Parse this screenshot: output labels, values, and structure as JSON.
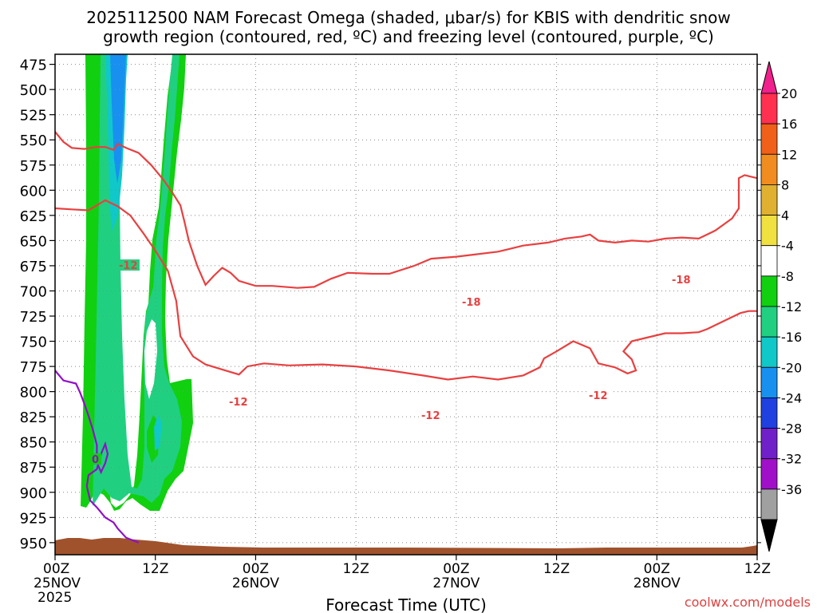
{
  "chart_data": {
    "type": "heatmap",
    "title_line1": "2025112500 NAM Forecast Omega (shaded, μbar/s) for KBIS with dendritic snow",
    "title_line2": "growth region (contoured, red, ºC) and freezing level (contoured, purple, ºC)",
    "xlabel": "Forecast Time (UTC)",
    "watermark": "coolwx.com/models",
    "x_range_hours": [
      0,
      84
    ],
    "x_ticks": [
      {
        "hour": 0,
        "label": "00Z",
        "sub": "25NOV",
        "sub2": "2025"
      },
      {
        "hour": 12,
        "label": "12Z",
        "sub": "",
        "sub2": ""
      },
      {
        "hour": 24,
        "label": "00Z",
        "sub": "26NOV",
        "sub2": ""
      },
      {
        "hour": 36,
        "label": "12Z",
        "sub": "",
        "sub2": ""
      },
      {
        "hour": 48,
        "label": "00Z",
        "sub": "27NOV",
        "sub2": ""
      },
      {
        "hour": 60,
        "label": "12Z",
        "sub": "",
        "sub2": ""
      },
      {
        "hour": 72,
        "label": "00Z",
        "sub": "28NOV",
        "sub2": ""
      },
      {
        "hour": 84,
        "label": "12Z",
        "sub": "",
        "sub2": ""
      }
    ],
    "y_range_mb": [
      465,
      962
    ],
    "y_ticks": [
      475,
      500,
      525,
      550,
      575,
      600,
      625,
      650,
      675,
      700,
      725,
      750,
      775,
      800,
      825,
      850,
      875,
      900,
      925,
      950
    ],
    "colorbar": {
      "labels": [
        "20",
        "16",
        "12",
        "8",
        "4",
        "-4",
        "-8",
        "-12",
        "-16",
        "-20",
        "-24",
        "-28",
        "-32",
        "-36"
      ],
      "colors": [
        "#ff3050",
        "#f06018",
        "#f08c20",
        "#e0b030",
        "#f0e040",
        "#ffffff",
        "#10d010",
        "#20d080",
        "#10c8c8",
        "#1890f0",
        "#2040e0",
        "#7020c8",
        "#a010c8",
        "#a0a0a0"
      ],
      "top_arrow": "#f0208c",
      "bottom_arrow": "#000000"
    },
    "contour_labels": {
      "minus12": "-12",
      "minus18": "-18",
      "zero": "0"
    },
    "contours": {
      "isotherm_-12_upper": [
        [
          0,
          618
        ],
        [
          2,
          619
        ],
        [
          4,
          620
        ],
        [
          6,
          610
        ],
        [
          7.5,
          616
        ],
        [
          9,
          625
        ],
        [
          10.5,
          642
        ],
        [
          12,
          660
        ],
        [
          13.5,
          680
        ],
        [
          14.5,
          710
        ],
        [
          15,
          745
        ],
        [
          16.5,
          765
        ],
        [
          18,
          773
        ],
        [
          20,
          778
        ],
        [
          22,
          783
        ],
        [
          23,
          775
        ],
        [
          25,
          772
        ],
        [
          28,
          774
        ],
        [
          32,
          773
        ],
        [
          36,
          775
        ],
        [
          40,
          779
        ],
        [
          44,
          784
        ],
        [
          47,
          788
        ],
        [
          50,
          785
        ],
        [
          53,
          788
        ],
        [
          56,
          784
        ],
        [
          58,
          776
        ],
        [
          58.5,
          767
        ],
        [
          60,
          760
        ],
        [
          62,
          750
        ],
        [
          64,
          757
        ],
        [
          65,
          772
        ],
        [
          67,
          776
        ],
        [
          68.5,
          782
        ],
        [
          69.5,
          779
        ],
        [
          69,
          768
        ],
        [
          68,
          760
        ],
        [
          69,
          750
        ],
        [
          71,
          746
        ],
        [
          73,
          742
        ],
        [
          75,
          742
        ],
        [
          77,
          741
        ],
        [
          78,
          738
        ],
        [
          80,
          730
        ],
        [
          82,
          722
        ],
        [
          83,
          720
        ],
        [
          84,
          720
        ]
      ],
      "isotherm_-18": [
        [
          0,
          542
        ],
        [
          1,
          552
        ],
        [
          2,
          558
        ],
        [
          3.5,
          559
        ],
        [
          5,
          557
        ],
        [
          6,
          557
        ],
        [
          7,
          560
        ],
        [
          7.5,
          554
        ],
        [
          8.5,
          558
        ],
        [
          10,
          563
        ],
        [
          11.5,
          575
        ],
        [
          13,
          590
        ],
        [
          14,
          602
        ],
        [
          15,
          615
        ],
        [
          15.5,
          632
        ],
        [
          16,
          650
        ],
        [
          17,
          675
        ],
        [
          18,
          694
        ],
        [
          19,
          685
        ],
        [
          20,
          677
        ],
        [
          21,
          682
        ],
        [
          22,
          690
        ],
        [
          24,
          695
        ],
        [
          26,
          695
        ],
        [
          29,
          697
        ],
        [
          31,
          696
        ],
        [
          33,
          688
        ],
        [
          35,
          682
        ],
        [
          38,
          683
        ],
        [
          40,
          683
        ],
        [
          43,
          675
        ],
        [
          45,
          668
        ],
        [
          48,
          666
        ],
        [
          50,
          664
        ],
        [
          53,
          661
        ],
        [
          56,
          655
        ],
        [
          59,
          652
        ],
        [
          61,
          648
        ],
        [
          63,
          646
        ],
        [
          64,
          644
        ],
        [
          65,
          650
        ],
        [
          67,
          652
        ],
        [
          69,
          650
        ],
        [
          71,
          651
        ],
        [
          73,
          648
        ],
        [
          75,
          647
        ],
        [
          77,
          648
        ],
        [
          79,
          640
        ],
        [
          81,
          628
        ],
        [
          81.8,
          618
        ],
        [
          81.8,
          600
        ],
        [
          81.8,
          588
        ],
        [
          82.5,
          585
        ],
        [
          84,
          588
        ]
      ],
      "freezing_level_0C": [
        [
          0,
          779
        ],
        [
          1,
          789
        ],
        [
          2.5,
          792
        ],
        [
          3,
          801
        ],
        [
          3.5,
          812
        ],
        [
          4,
          824
        ],
        [
          4.5,
          837
        ],
        [
          5,
          853
        ],
        [
          5,
          870
        ],
        [
          5.5,
          880
        ],
        [
          6,
          871
        ],
        [
          6.3,
          862
        ],
        [
          6,
          852
        ],
        [
          5.5,
          862
        ],
        [
          5,
          877
        ],
        [
          4,
          883
        ],
        [
          3.8,
          894
        ],
        [
          4.2,
          908
        ],
        [
          5,
          915
        ],
        [
          6,
          925
        ],
        [
          7,
          930
        ],
        [
          7.5,
          936
        ],
        [
          8.5,
          945
        ],
        [
          10,
          950
        ]
      ]
    }
  }
}
